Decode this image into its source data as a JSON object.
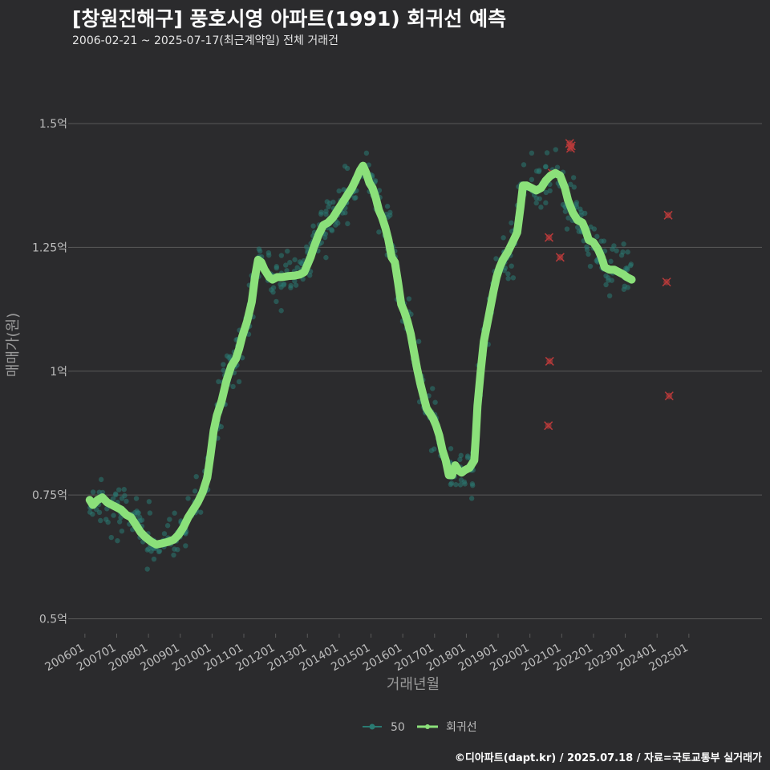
{
  "header": {
    "title": "[창원진해구] 풍호시영 아파트(1991) 회귀선 예측",
    "subtitle": "2006-02-21 ~ 2025-07-17(최근계약일) 전체 거래건",
    "credit": "©디아파트(dapt.kr) / 2025.07.18 / 자료=국토교통부 실거래가"
  },
  "colors": {
    "background": "#2b2b2d",
    "grid": "#5a5a5a",
    "scatter": "#2a7a72",
    "regression": "#8be07a",
    "cancelled": "#b83a3a"
  },
  "chart_data": {
    "type": "scatter",
    "title": "[창원진해구] 풍호시영 아파트(1991) 회귀선 예측",
    "xlabel": "거래년월",
    "ylabel": "매매가(원)",
    "xlim": [
      2005.6,
      2027.3
    ],
    "ylim": [
      0.47,
      1.62
    ],
    "y_ticks": [
      {
        "value": 0.5,
        "label": "0.5억"
      },
      {
        "value": 0.75,
        "label": "0.75억"
      },
      {
        "value": 1.0,
        "label": "1억"
      },
      {
        "value": 1.25,
        "label": "1.25억"
      },
      {
        "value": 1.5,
        "label": "1.5억"
      }
    ],
    "x_ticks": [
      {
        "value": 2006,
        "label": "200601"
      },
      {
        "value": 2007,
        "label": "200701"
      },
      {
        "value": 2008,
        "label": "200801"
      },
      {
        "value": 2009,
        "label": "200901"
      },
      {
        "value": 2010,
        "label": "201001"
      },
      {
        "value": 2011,
        "label": "201101"
      },
      {
        "value": 2012,
        "label": "201201"
      },
      {
        "value": 2013,
        "label": "201301"
      },
      {
        "value": 2014,
        "label": "201401"
      },
      {
        "value": 2015,
        "label": "201501"
      },
      {
        "value": 2016,
        "label": "201601"
      },
      {
        "value": 2017,
        "label": "201701"
      },
      {
        "value": 2018,
        "label": "201801"
      },
      {
        "value": 2019,
        "label": "201901"
      },
      {
        "value": 2020,
        "label": "202001"
      },
      {
        "value": 2021,
        "label": "202101"
      },
      {
        "value": 2022,
        "label": "202201"
      },
      {
        "value": 2023,
        "label": "202301"
      },
      {
        "value": 2024,
        "label": "202401"
      },
      {
        "value": 2025,
        "label": "202501"
      }
    ],
    "legend": [
      {
        "name": "50",
        "marker": "dot"
      },
      {
        "name": "회귀선",
        "marker": "line"
      }
    ],
    "legend_position": "bottom",
    "regression": [
      [
        2006.15,
        0.74
      ],
      [
        2006.25,
        0.73
      ],
      [
        2006.4,
        0.74
      ],
      [
        2006.55,
        0.745
      ],
      [
        2006.7,
        0.735
      ],
      [
        2006.85,
        0.73
      ],
      [
        2007.0,
        0.725
      ],
      [
        2007.15,
        0.72
      ],
      [
        2007.3,
        0.71
      ],
      [
        2007.45,
        0.705
      ],
      [
        2007.6,
        0.69
      ],
      [
        2007.75,
        0.675
      ],
      [
        2007.9,
        0.665
      ],
      [
        2008.0,
        0.66
      ],
      [
        2008.1,
        0.655
      ],
      [
        2008.25,
        0.65
      ],
      [
        2008.4,
        0.652
      ],
      [
        2008.6,
        0.655
      ],
      [
        2008.8,
        0.66
      ],
      [
        2008.95,
        0.67
      ],
      [
        2009.1,
        0.685
      ],
      [
        2009.25,
        0.705
      ],
      [
        2009.4,
        0.72
      ],
      [
        2009.55,
        0.735
      ],
      [
        2009.7,
        0.755
      ],
      [
        2009.85,
        0.785
      ],
      [
        2009.95,
        0.83
      ],
      [
        2010.05,
        0.88
      ],
      [
        2010.15,
        0.91
      ],
      [
        2010.3,
        0.94
      ],
      [
        2010.45,
        0.98
      ],
      [
        2010.6,
        1.01
      ],
      [
        2010.75,
        1.025
      ],
      [
        2010.85,
        1.045
      ],
      [
        2010.95,
        1.07
      ],
      [
        2011.1,
        1.1
      ],
      [
        2011.25,
        1.14
      ],
      [
        2011.35,
        1.19
      ],
      [
        2011.45,
        1.225
      ],
      [
        2011.55,
        1.22
      ],
      [
        2011.65,
        1.205
      ],
      [
        2011.8,
        1.19
      ],
      [
        2011.9,
        1.185
      ],
      [
        2012.05,
        1.19
      ],
      [
        2012.2,
        1.19
      ],
      [
        2012.4,
        1.192
      ],
      [
        2012.6,
        1.193
      ],
      [
        2012.75,
        1.195
      ],
      [
        2012.9,
        1.2
      ],
      [
        2013.0,
        1.215
      ],
      [
        2013.1,
        1.23
      ],
      [
        2013.2,
        1.25
      ],
      [
        2013.35,
        1.275
      ],
      [
        2013.5,
        1.295
      ],
      [
        2013.65,
        1.3
      ],
      [
        2013.8,
        1.31
      ],
      [
        2013.95,
        1.325
      ],
      [
        2014.1,
        1.34
      ],
      [
        2014.25,
        1.355
      ],
      [
        2014.4,
        1.37
      ],
      [
        2014.55,
        1.39
      ],
      [
        2014.65,
        1.405
      ],
      [
        2014.75,
        1.415
      ],
      [
        2014.85,
        1.4
      ],
      [
        2014.95,
        1.38
      ],
      [
        2015.05,
        1.37
      ],
      [
        2015.15,
        1.35
      ],
      [
        2015.25,
        1.325
      ],
      [
        2015.35,
        1.31
      ],
      [
        2015.45,
        1.29
      ],
      [
        2015.55,
        1.265
      ],
      [
        2015.65,
        1.23
      ],
      [
        2015.75,
        1.22
      ],
      [
        2015.85,
        1.18
      ],
      [
        2015.95,
        1.135
      ],
      [
        2016.05,
        1.12
      ],
      [
        2016.15,
        1.1
      ],
      [
        2016.25,
        1.075
      ],
      [
        2016.35,
        1.04
      ],
      [
        2016.45,
        1.005
      ],
      [
        2016.55,
        0.975
      ],
      [
        2016.65,
        0.95
      ],
      [
        2016.75,
        0.925
      ],
      [
        2016.85,
        0.915
      ],
      [
        2016.95,
        0.905
      ],
      [
        2017.05,
        0.89
      ],
      [
        2017.15,
        0.87
      ],
      [
        2017.25,
        0.84
      ],
      [
        2017.35,
        0.82
      ],
      [
        2017.45,
        0.79
      ],
      [
        2017.55,
        0.79
      ],
      [
        2017.65,
        0.81
      ],
      [
        2017.75,
        0.8
      ],
      [
        2017.85,
        0.795
      ],
      [
        2017.95,
        0.8
      ],
      [
        2018.1,
        0.805
      ],
      [
        2018.25,
        0.82
      ],
      [
        2018.3,
        0.87
      ],
      [
        2018.35,
        0.93
      ],
      [
        2018.45,
        1.0
      ],
      [
        2018.55,
        1.06
      ],
      [
        2018.7,
        1.11
      ],
      [
        2018.85,
        1.16
      ],
      [
        2018.95,
        1.19
      ],
      [
        2019.05,
        1.21
      ],
      [
        2019.15,
        1.225
      ],
      [
        2019.3,
        1.24
      ],
      [
        2019.45,
        1.26
      ],
      [
        2019.6,
        1.28
      ],
      [
        2019.7,
        1.33
      ],
      [
        2019.78,
        1.375
      ],
      [
        2019.9,
        1.375
      ],
      [
        2020.05,
        1.37
      ],
      [
        2020.2,
        1.365
      ],
      [
        2020.35,
        1.37
      ],
      [
        2020.5,
        1.385
      ],
      [
        2020.65,
        1.395
      ],
      [
        2020.8,
        1.4
      ],
      [
        2020.95,
        1.395
      ],
      [
        2021.1,
        1.37
      ],
      [
        2021.2,
        1.345
      ],
      [
        2021.35,
        1.32
      ],
      [
        2021.5,
        1.305
      ],
      [
        2021.65,
        1.3
      ],
      [
        2021.75,
        1.285
      ],
      [
        2021.85,
        1.265
      ],
      [
        2022.0,
        1.26
      ],
      [
        2022.15,
        1.245
      ],
      [
        2022.25,
        1.23
      ],
      [
        2022.35,
        1.21
      ],
      [
        2022.5,
        1.205
      ],
      [
        2022.65,
        1.205
      ],
      [
        2022.8,
        1.2
      ],
      [
        2022.95,
        1.195
      ],
      [
        2023.05,
        1.19
      ],
      [
        2023.2,
        1.185
      ]
    ],
    "scatter_seed": 1991,
    "scatter_count": 620,
    "cancelled_points": [
      [
        2021.25,
        1.46
      ],
      [
        2021.3,
        1.455
      ],
      [
        2021.28,
        1.45
      ],
      [
        2020.95,
        1.23
      ],
      [
        2020.7,
        1.4
      ],
      [
        2020.6,
        1.27
      ],
      [
        2020.62,
        1.02
      ],
      [
        2020.58,
        0.89
      ],
      [
        2024.35,
        1.315
      ],
      [
        2024.3,
        1.18
      ],
      [
        2024.38,
        0.95
      ]
    ]
  }
}
